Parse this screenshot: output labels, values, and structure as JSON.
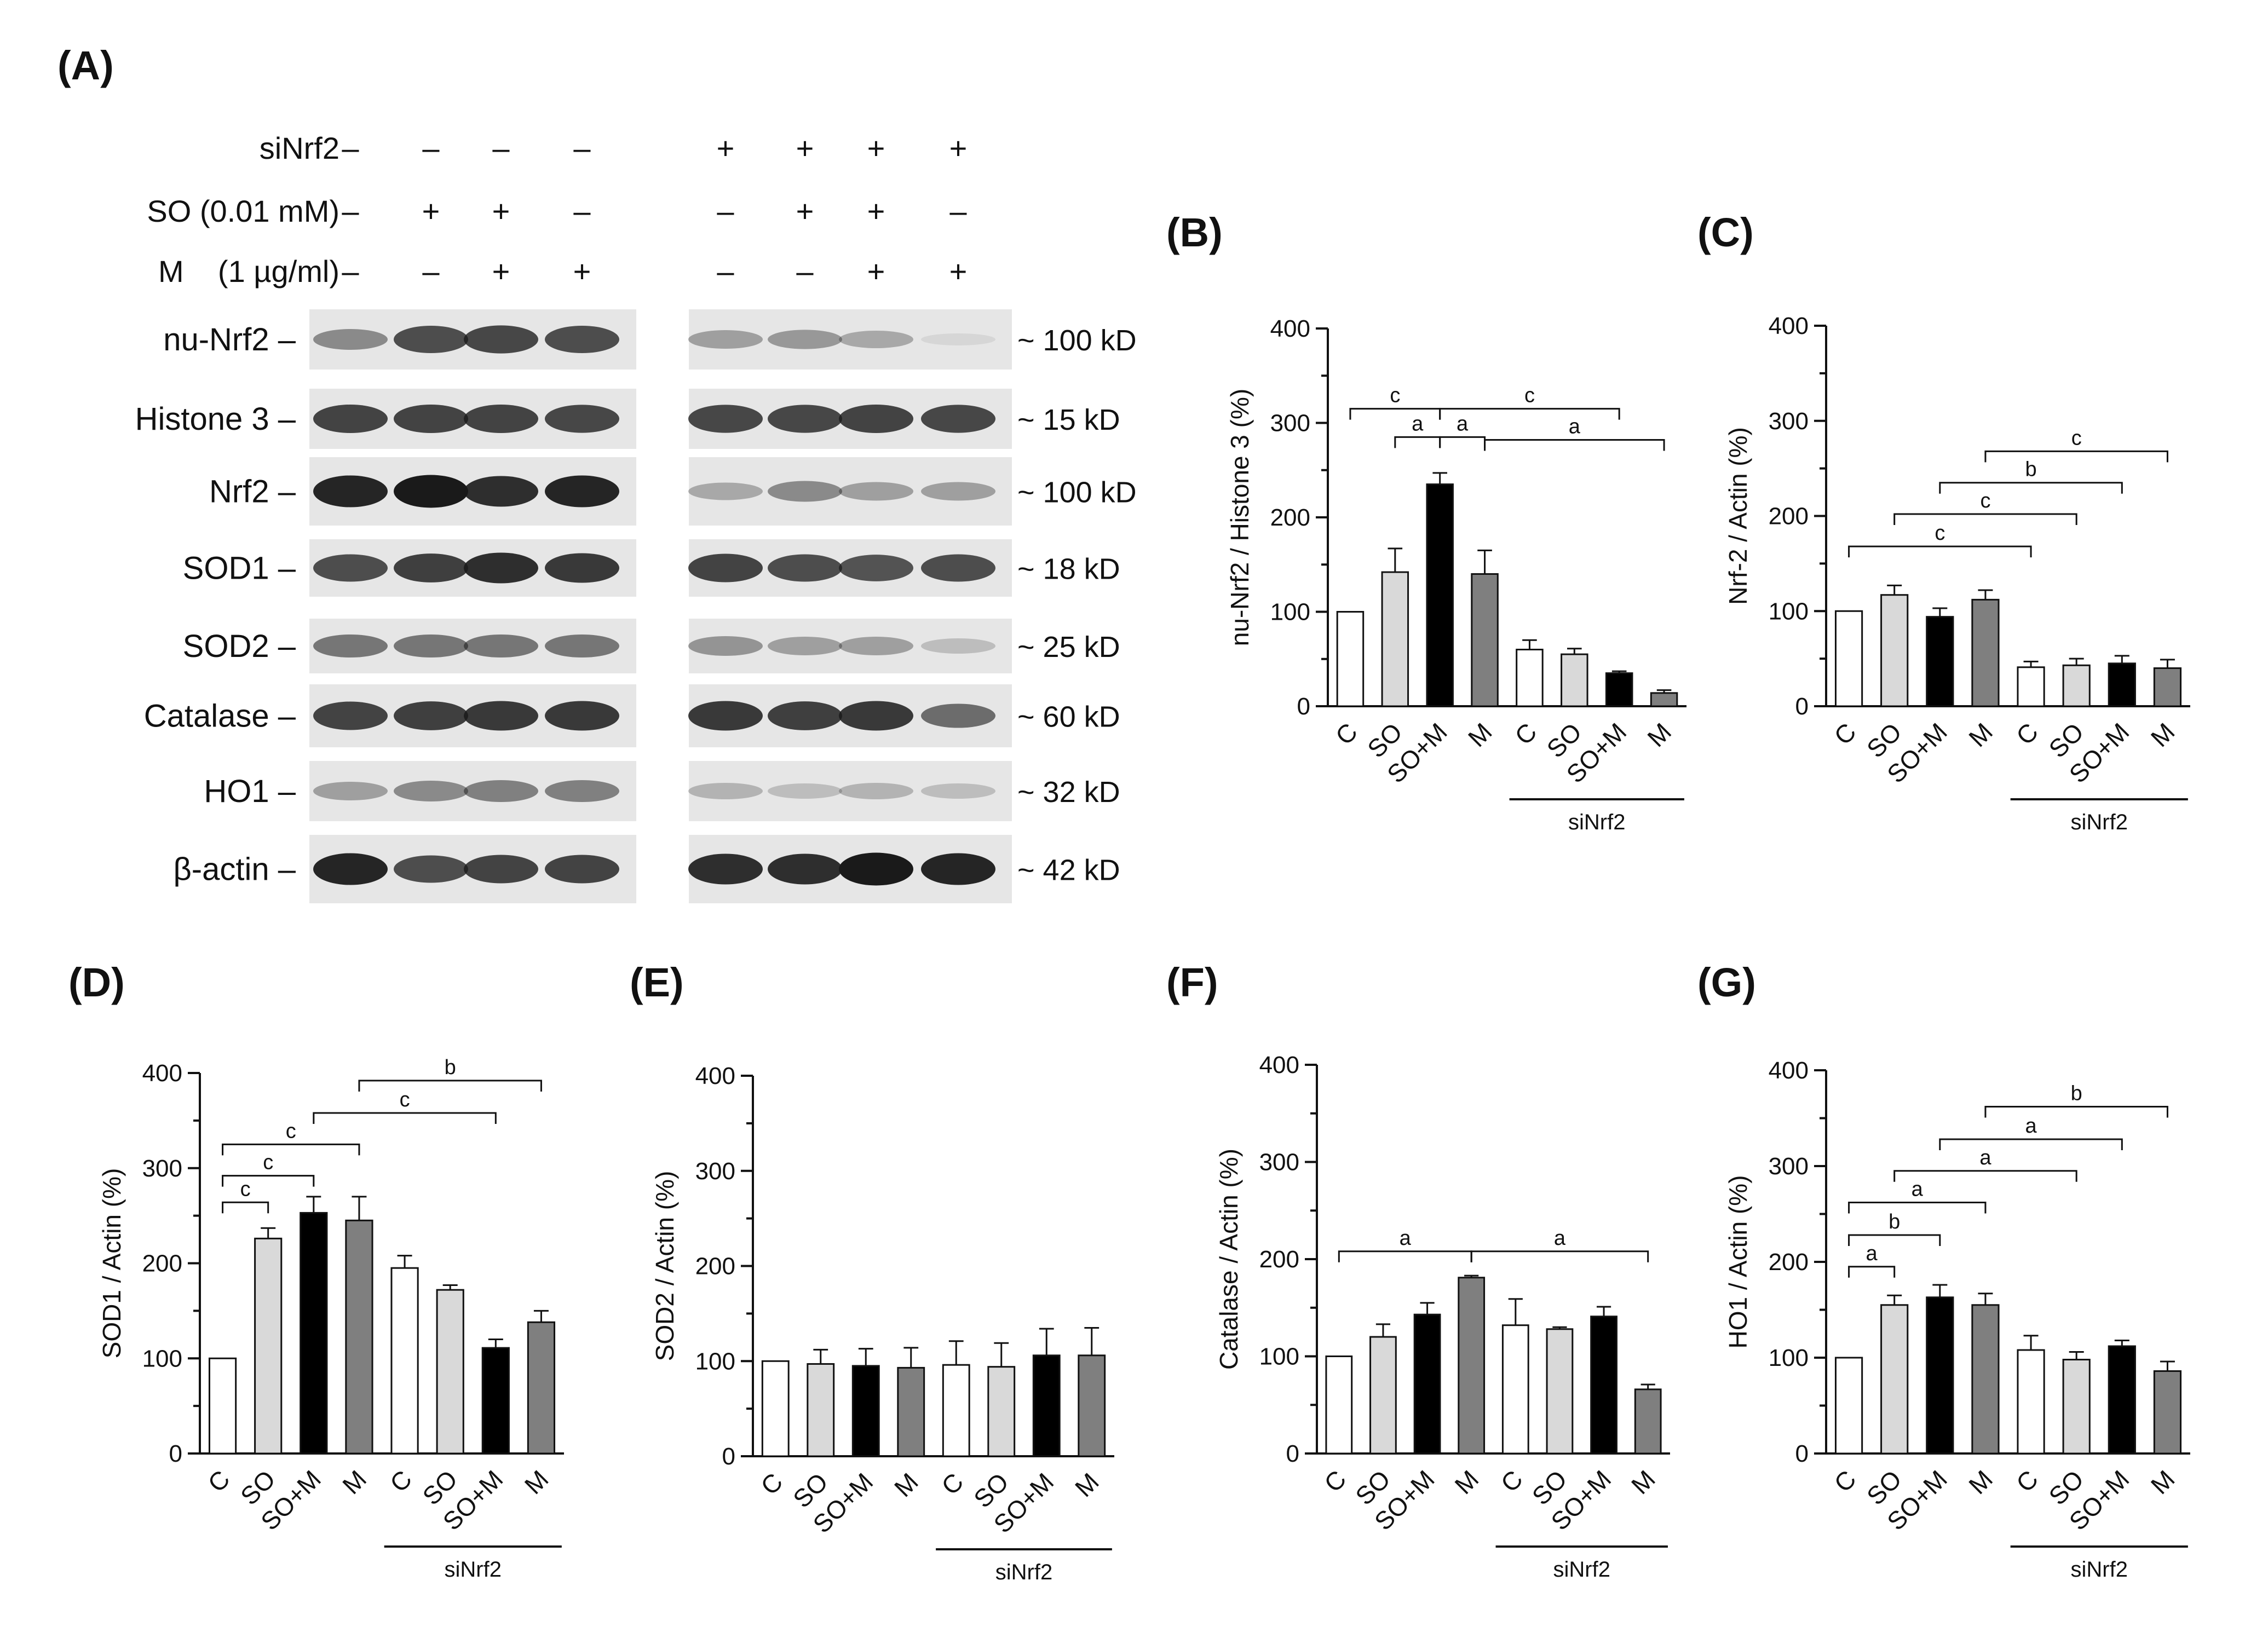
{
  "panel_A": {
    "letter": "(A)",
    "conditions": [
      {
        "label": "siNrf2",
        "signs": [
          "–",
          "–",
          "–",
          "–",
          "+",
          "+",
          "+",
          "+"
        ]
      },
      {
        "label": "SO (0.01 mM)",
        "signs": [
          "–",
          "+",
          "+",
          "–",
          "–",
          "+",
          "+",
          "–"
        ]
      },
      {
        "label": "M    (1 µg/ml)",
        "signs": [
          "–",
          "–",
          "+",
          "+",
          "–",
          "–",
          "+",
          "+"
        ]
      }
    ],
    "blots": [
      {
        "label": "nu-Nrf2 –",
        "size": "~ 100 kD",
        "intensity_lanes": [
          0.45,
          0.75,
          0.78,
          0.75,
          0.35,
          0.38,
          0.3,
          0.05
        ]
      },
      {
        "label": "Histone 3 –",
        "size": "~ 15 kD",
        "intensity_lanes": [
          0.8,
          0.8,
          0.8,
          0.78,
          0.78,
          0.78,
          0.8,
          0.78
        ]
      },
      {
        "label": "Nrf2 –",
        "size": "~ 100 kD",
        "intensity_lanes": [
          0.95,
          1.0,
          0.9,
          0.95,
          0.3,
          0.45,
          0.35,
          0.35
        ]
      },
      {
        "label": "SOD1 –",
        "size": "~ 18 kD",
        "intensity_lanes": [
          0.75,
          0.82,
          0.9,
          0.85,
          0.8,
          0.75,
          0.72,
          0.75
        ]
      },
      {
        "label": "SOD2 –",
        "size": "~ 25 kD",
        "intensity_lanes": [
          0.55,
          0.55,
          0.55,
          0.55,
          0.4,
          0.35,
          0.35,
          0.2
        ]
      },
      {
        "label": "Catalase –",
        "size": "~ 60 kD",
        "intensity_lanes": [
          0.8,
          0.82,
          0.85,
          0.85,
          0.85,
          0.82,
          0.85,
          0.6
        ]
      },
      {
        "label": "HO1 –",
        "size": "~ 32 kD",
        "intensity_lanes": [
          0.35,
          0.45,
          0.5,
          0.5,
          0.25,
          0.2,
          0.25,
          0.2
        ]
      },
      {
        "label": "β-actin –",
        "size": "~ 42 kD",
        "intensity_lanes": [
          0.95,
          0.75,
          0.8,
          0.8,
          0.9,
          0.9,
          1.0,
          0.95
        ]
      }
    ]
  },
  "chart_data": [
    {
      "panel": "(B)",
      "type": "bar",
      "ylabel": "nu-Nrf2 / Histone 3 (%)",
      "ylim": [
        0,
        400
      ],
      "yticks": [
        0,
        100,
        200,
        300,
        400
      ],
      "categories": [
        "C",
        "SO",
        "SO+M",
        "M",
        "C",
        "SO",
        "SO+M",
        "M"
      ],
      "values": [
        100,
        142,
        235,
        140,
        60,
        55,
        35,
        14
      ],
      "errors": [
        0,
        25,
        12,
        25,
        10,
        6,
        2,
        3
      ],
      "group_label": "siNrf2",
      "significance": [
        {
          "from": 0,
          "to": 2,
          "label": "c",
          "y": 315
        },
        {
          "from": 1,
          "to": 2,
          "label": "a",
          "y": 285
        },
        {
          "from": 2,
          "to": 3,
          "label": "a",
          "y": 285
        },
        {
          "from": 2,
          "to": 6,
          "label": "c",
          "y": 315
        },
        {
          "from": 3,
          "to": 7,
          "label": "a",
          "y": 282
        }
      ]
    },
    {
      "panel": "(C)",
      "type": "bar",
      "ylabel": "Nrf-2 / Actin (%)",
      "ylim": [
        0,
        400
      ],
      "yticks": [
        0,
        100,
        200,
        300,
        400
      ],
      "categories": [
        "C",
        "SO",
        "SO+M",
        "M",
        "C",
        "SO",
        "SO+M",
        "M"
      ],
      "values": [
        100,
        117,
        94,
        112,
        41,
        43,
        45,
        40
      ],
      "errors": [
        0,
        10,
        9,
        10,
        6,
        7,
        8,
        9
      ],
      "group_label": "siNrf2",
      "significance": [
        {
          "from": 0,
          "to": 4,
          "label": "c",
          "y": 168
        },
        {
          "from": 1,
          "to": 5,
          "label": "c",
          "y": 202
        },
        {
          "from": 2,
          "to": 6,
          "label": "b",
          "y": 235
        },
        {
          "from": 3,
          "to": 7,
          "label": "c",
          "y": 268
        }
      ]
    },
    {
      "panel": "(D)",
      "type": "bar",
      "ylabel": "SOD1 / Actin (%)",
      "ylim": [
        0,
        400
      ],
      "yticks": [
        0,
        100,
        200,
        300,
        400
      ],
      "categories": [
        "C",
        "SO",
        "SO+M",
        "M",
        "C",
        "SO",
        "SO+M",
        "M"
      ],
      "values": [
        100,
        226,
        253,
        245,
        195,
        172,
        111,
        138
      ],
      "errors": [
        0,
        11,
        17,
        25,
        13,
        5,
        9,
        12
      ],
      "group_label": "siNrf2",
      "significance": [
        {
          "from": 0,
          "to": 1,
          "label": "c",
          "y": 264
        },
        {
          "from": 0,
          "to": 2,
          "label": "c",
          "y": 292
        },
        {
          "from": 0,
          "to": 3,
          "label": "c",
          "y": 325
        },
        {
          "from": 2,
          "to": 6,
          "label": "c",
          "y": 358
        },
        {
          "from": 3,
          "to": 7,
          "label": "b",
          "y": 392
        }
      ]
    },
    {
      "panel": "(E)",
      "type": "bar",
      "ylabel": "SOD2 / Actin (%)",
      "ylim": [
        0,
        400
      ],
      "yticks": [
        0,
        100,
        200,
        300,
        400
      ],
      "categories": [
        "C",
        "SO",
        "SO+M",
        "M",
        "C",
        "SO",
        "SO+M",
        "M"
      ],
      "values": [
        100,
        97,
        95,
        93,
        96,
        94,
        106,
        106
      ],
      "errors": [
        0,
        15,
        18,
        21,
        25,
        25,
        28,
        29
      ],
      "group_label": "siNrf2",
      "significance": []
    },
    {
      "panel": "(F)",
      "type": "bar",
      "ylabel": "Catalase / Actin (%)",
      "ylim": [
        0,
        400
      ],
      "yticks": [
        0,
        100,
        200,
        300,
        400
      ],
      "categories": [
        "C",
        "SO",
        "SO+M",
        "M",
        "C",
        "SO",
        "SO+M",
        "M"
      ],
      "values": [
        100,
        120,
        143,
        181,
        132,
        128,
        141,
        66
      ],
      "errors": [
        0,
        13,
        12,
        2,
        27,
        2,
        10,
        5
      ],
      "group_label": "siNrf2",
      "significance": [
        {
          "from": 0,
          "to": 3,
          "label": "a",
          "y": 208
        },
        {
          "from": 3,
          "to": 7,
          "label": "a",
          "y": 208
        }
      ]
    },
    {
      "panel": "(G)",
      "type": "bar",
      "ylabel": "HO1 / Actin (%)",
      "ylim": [
        0,
        400
      ],
      "yticks": [
        0,
        100,
        200,
        300,
        400
      ],
      "categories": [
        "C",
        "SO",
        "SO+M",
        "M",
        "C",
        "SO",
        "SO+M",
        "M"
      ],
      "values": [
        100,
        155,
        163,
        155,
        108,
        98,
        112,
        86
      ],
      "errors": [
        0,
        10,
        13,
        12,
        15,
        8,
        6,
        10
      ],
      "group_label": "siNrf2",
      "significance": [
        {
          "from": 0,
          "to": 1,
          "label": "a",
          "y": 195
        },
        {
          "from": 0,
          "to": 2,
          "label": "b",
          "y": 228
        },
        {
          "from": 0,
          "to": 3,
          "label": "a",
          "y": 262
        },
        {
          "from": 1,
          "to": 5,
          "label": "a",
          "y": 295
        },
        {
          "from": 2,
          "to": 6,
          "label": "a",
          "y": 328
        },
        {
          "from": 3,
          "to": 7,
          "label": "b",
          "y": 362
        }
      ]
    }
  ],
  "colors": {
    "bar_fills": [
      "#ffffff",
      "#d9d9d9",
      "#000000",
      "#7f7f7f",
      "#ffffff",
      "#d9d9d9",
      "#000000",
      "#7f7f7f"
    ],
    "blot_background": "#e6e6e6",
    "band": "#1a1a1a"
  }
}
